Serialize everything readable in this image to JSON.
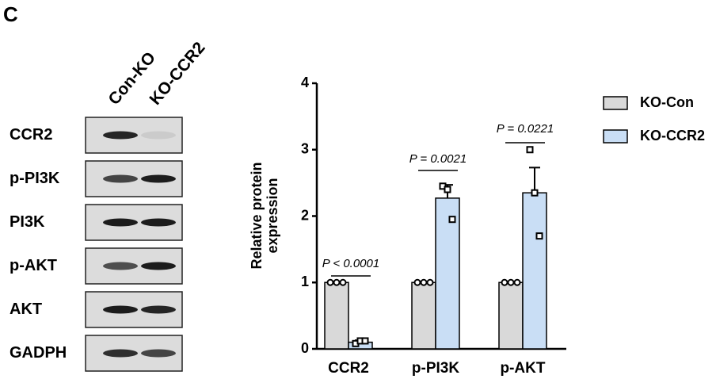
{
  "panel_label": "C",
  "blot": {
    "lanes": [
      "Con-KO",
      "KO-CCR2"
    ],
    "proteins": [
      "CCR2",
      "p-PI3K",
      "PI3K",
      "p-AKT",
      "AKT",
      "GADPH"
    ]
  },
  "chart_data": {
    "type": "bar",
    "ylabel": [
      "Relative protein",
      "expression"
    ],
    "categories": [
      "CCR2",
      "p-PI3K",
      "p-AKT"
    ],
    "series": [
      {
        "name": "KO-Con",
        "color": "#d9d9d9",
        "values": [
          1,
          1,
          1
        ],
        "errors": [
          0,
          0,
          0
        ],
        "points": [
          [
            1,
            1,
            1
          ],
          [
            1,
            1,
            1
          ],
          [
            1,
            1,
            1
          ]
        ]
      },
      {
        "name": "KO-CCR2",
        "color": "#c9def5",
        "values": [
          0.1,
          2.27,
          2.35
        ],
        "errors": [
          0.03,
          0.2,
          0.38
        ],
        "points": [
          [
            0.08,
            0.12,
            0.12
          ],
          [
            2.45,
            2.4,
            1.95
          ],
          [
            3.0,
            2.35,
            1.7
          ]
        ]
      }
    ],
    "annotations": [
      "P < 0.0001",
      "P = 0.0021",
      "P = 0.0221"
    ],
    "ylim": [
      0,
      4
    ],
    "yticks": [
      0,
      1,
      2,
      3,
      4
    ],
    "legend": "right"
  }
}
